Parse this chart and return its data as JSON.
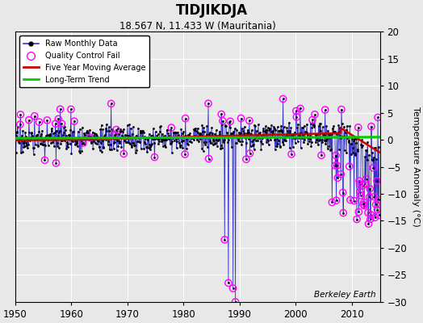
{
  "title": "TIDJIKDJA",
  "subtitle": "18.567 N, 11.433 W (Mauritania)",
  "ylabel": "Temperature Anomaly (°C)",
  "xlabel_credit": "Berkeley Earth",
  "xlim": [
    1950,
    2015
  ],
  "ylim": [
    -30,
    20
  ],
  "yticks": [
    -30,
    -25,
    -20,
    -15,
    -10,
    -5,
    0,
    5,
    10,
    15,
    20
  ],
  "xticks": [
    1950,
    1960,
    1970,
    1980,
    1990,
    2000,
    2010
  ],
  "bg_color": "#e8e8e8",
  "grid_color": "white",
  "raw_line_color": "#3333cc",
  "raw_dot_color": "#000000",
  "qc_fail_color": "#ff00ff",
  "moving_avg_color": "#cc0000",
  "trend_color": "#00cc00",
  "seed": 17,
  "n_monthly": 780,
  "start_year": 1950.0,
  "end_year": 2014.9
}
